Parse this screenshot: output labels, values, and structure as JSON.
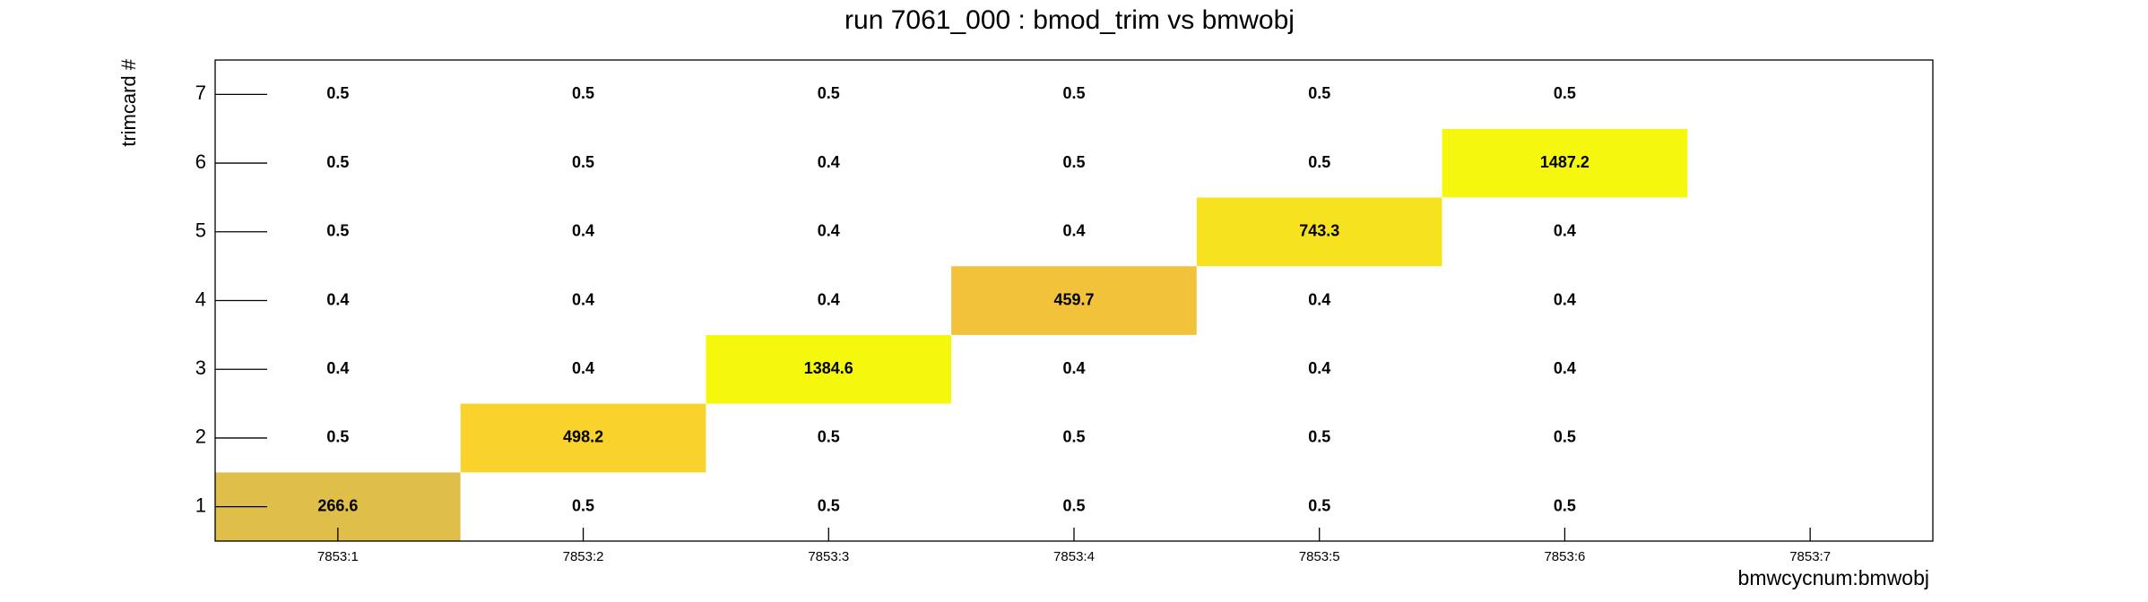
{
  "chart_data": {
    "type": "heatmap",
    "title": "run 7061_000 : bmod_trim vs bmwobj",
    "x_label": "bmwcycnum:bmwobj",
    "y_label": "trimcard #",
    "x_categories": [
      "7853:1",
      "7853:2",
      "7853:3",
      "7853:4",
      "7853:5",
      "7853:6",
      "7853:7"
    ],
    "y_categories": [
      1,
      2,
      3,
      4,
      5,
      6,
      7
    ],
    "values": [
      [
        266.6,
        0.5,
        0.5,
        0.5,
        0.5,
        0.5,
        null
      ],
      [
        0.5,
        498.2,
        0.5,
        0.5,
        0.5,
        0.5,
        null
      ],
      [
        0.4,
        0.4,
        1384.6,
        0.4,
        0.4,
        0.4,
        null
      ],
      [
        0.4,
        0.4,
        0.4,
        459.7,
        0.4,
        0.4,
        null
      ],
      [
        0.5,
        0.4,
        0.4,
        0.4,
        743.3,
        0.4,
        null
      ],
      [
        0.5,
        0.5,
        0.4,
        0.5,
        0.5,
        1487.2,
        null
      ],
      [
        0.5,
        0.5,
        0.5,
        0.5,
        0.5,
        0.5,
        null
      ]
    ],
    "colors": [
      [
        "#e0be4a",
        "#ffffff",
        "#ffffff",
        "#ffffff",
        "#ffffff",
        "#ffffff",
        null
      ],
      [
        "#ffffff",
        "#fad22c",
        "#ffffff",
        "#ffffff",
        "#ffffff",
        "#ffffff",
        null
      ],
      [
        "#ffffff",
        "#ffffff",
        "#f5f80c",
        "#ffffff",
        "#ffffff",
        "#ffffff",
        null
      ],
      [
        "#ffffff",
        "#ffffff",
        "#ffffff",
        "#f2c23a",
        "#ffffff",
        "#ffffff",
        null
      ],
      [
        "#ffffff",
        "#ffffff",
        "#ffffff",
        "#ffffff",
        "#f6e21e",
        "#ffffff",
        null
      ],
      [
        "#ffffff",
        "#ffffff",
        "#ffffff",
        "#ffffff",
        "#ffffff",
        "#f5f80e",
        null
      ],
      [
        "#ffffff",
        "#ffffff",
        "#ffffff",
        "#ffffff",
        "#ffffff",
        "#ffffff",
        null
      ]
    ]
  }
}
